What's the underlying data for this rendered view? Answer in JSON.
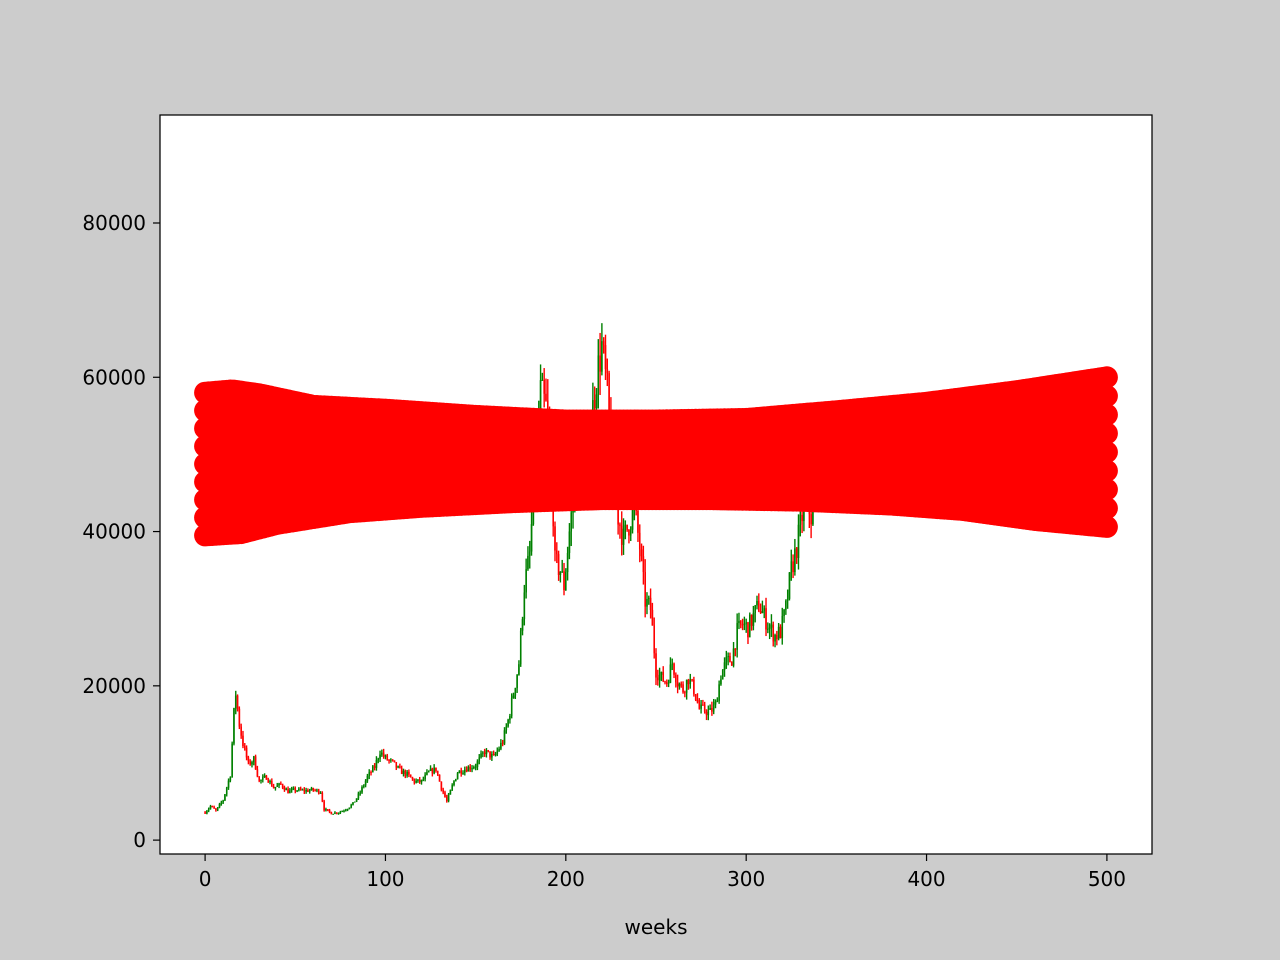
{
  "colors": {
    "figure_background": "#cccccc",
    "axes_background": "#ffffff",
    "up_color": "#008000",
    "down_color": "#ff0000",
    "band_color": "#ff0000",
    "axis_color": "#000000"
  },
  "chart_data": {
    "type": "candlestick",
    "title": "",
    "xlabel": "weeks",
    "ylabel": "",
    "xlim": [
      -25,
      525
    ],
    "ylim": [
      -1800,
      94000
    ],
    "xticks": [
      0,
      100,
      200,
      300,
      400,
      500
    ],
    "yticks": [
      0,
      20000,
      40000,
      60000,
      80000
    ],
    "grid": false,
    "legend": "none",
    "candles": {
      "x_start": 0,
      "x_step": 1,
      "close_keyframes": [
        [
          0,
          3600
        ],
        [
          3,
          4400
        ],
        [
          6,
          3800
        ],
        [
          10,
          5200
        ],
        [
          14,
          8500
        ],
        [
          16,
          16500
        ],
        [
          17,
          19000
        ],
        [
          19,
          15000
        ],
        [
          21,
          12500
        ],
        [
          24,
          9800
        ],
        [
          27,
          10500
        ],
        [
          30,
          7600
        ],
        [
          34,
          8200
        ],
        [
          38,
          6800
        ],
        [
          42,
          7200
        ],
        [
          46,
          6300
        ],
        [
          50,
          6500
        ],
        [
          55,
          6400
        ],
        [
          60,
          6500
        ],
        [
          64,
          6300
        ],
        [
          66,
          4000
        ],
        [
          70,
          3500
        ],
        [
          74,
          3600
        ],
        [
          78,
          4000
        ],
        [
          82,
          4700
        ],
        [
          86,
          6200
        ],
        [
          90,
          8200
        ],
        [
          94,
          9500
        ],
        [
          97,
          11500
        ],
        [
          100,
          10600
        ],
        [
          104,
          10000
        ],
        [
          108,
          9000
        ],
        [
          112,
          8500
        ],
        [
          116,
          7600
        ],
        [
          120,
          7600
        ],
        [
          124,
          8800
        ],
        [
          128,
          9200
        ],
        [
          131,
          6800
        ],
        [
          134,
          5000
        ],
        [
          137,
          7000
        ],
        [
          140,
          8800
        ],
        [
          145,
          9300
        ],
        [
          150,
          9700
        ],
        [
          155,
          11500
        ],
        [
          160,
          10700
        ],
        [
          165,
          12800
        ],
        [
          168,
          15500
        ],
        [
          171,
          19000
        ],
        [
          174,
          23000
        ],
        [
          177,
          33000
        ],
        [
          180,
          37000
        ],
        [
          183,
          48000
        ],
        [
          186,
          58000
        ],
        [
          189,
          56000
        ],
        [
          192,
          49000
        ],
        [
          194,
          36000
        ],
        [
          197,
          35000
        ],
        [
          199,
          33000
        ],
        [
          202,
          40000
        ],
        [
          205,
          46000
        ],
        [
          208,
          48000
        ],
        [
          211,
          46000
        ],
        [
          214,
          54000
        ],
        [
          217,
          60000
        ],
        [
          220,
          64000
        ],
        [
          223,
          58000
        ],
        [
          226,
          47000
        ],
        [
          229,
          42000
        ],
        [
          232,
          39000
        ],
        [
          235,
          41000
        ],
        [
          238,
          43000
        ],
        [
          241,
          38000
        ],
        [
          244,
          31000
        ],
        [
          247,
          30000
        ],
        [
          250,
          22000
        ],
        [
          253,
          21000
        ],
        [
          256,
          20500
        ],
        [
          259,
          23000
        ],
        [
          262,
          20500
        ],
        [
          265,
          19500
        ],
        [
          268,
          21000
        ],
        [
          271,
          19500
        ],
        [
          274,
          17000
        ],
        [
          277,
          16800
        ],
        [
          280,
          16600
        ],
        [
          283,
          17500
        ],
        [
          286,
          21500
        ],
        [
          289,
          23000
        ],
        [
          292,
          23500
        ],
        [
          295,
          27000
        ],
        [
          298,
          28000
        ],
        [
          301,
          27500
        ],
        [
          304,
          29000
        ],
        [
          307,
          30500
        ],
        [
          310,
          29000
        ],
        [
          313,
          27500
        ],
        [
          316,
          26500
        ],
        [
          319,
          27000
        ],
        [
          322,
          30000
        ],
        [
          325,
          35000
        ],
        [
          328,
          38000
        ],
        [
          331,
          42000
        ],
        [
          334,
          43500
        ],
        [
          336,
          42000
        ],
        [
          338,
          43000
        ]
      ]
    },
    "band": {
      "x_start": 0,
      "x_end": 500,
      "x_step": 2,
      "upper_keyframes": [
        [
          0,
          58000
        ],
        [
          15,
          58300
        ],
        [
          30,
          57800
        ],
        [
          60,
          56300
        ],
        [
          100,
          55800
        ],
        [
          150,
          55000
        ],
        [
          200,
          54400
        ],
        [
          250,
          54400
        ],
        [
          300,
          54600
        ],
        [
          350,
          55600
        ],
        [
          400,
          56700
        ],
        [
          450,
          58200
        ],
        [
          500,
          60000
        ]
      ],
      "lower_keyframes": [
        [
          0,
          39500
        ],
        [
          20,
          39800
        ],
        [
          40,
          41000
        ],
        [
          80,
          42500
        ],
        [
          120,
          43200
        ],
        [
          170,
          43800
        ],
        [
          220,
          44200
        ],
        [
          280,
          44200
        ],
        [
          330,
          44000
        ],
        [
          380,
          43500
        ],
        [
          420,
          42800
        ],
        [
          460,
          41500
        ],
        [
          500,
          40600
        ]
      ]
    }
  }
}
